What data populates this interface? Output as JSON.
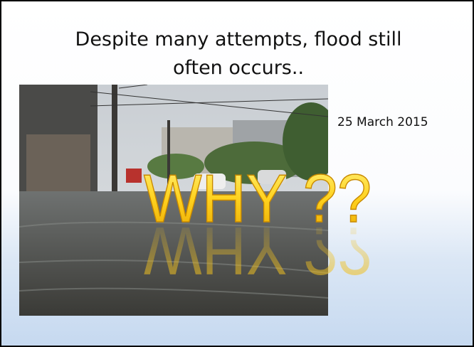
{
  "slide": {
    "title": "Despite many attempts, flood still often occurs..",
    "date": "25 March 2015",
    "overlay": "WHY ??"
  }
}
